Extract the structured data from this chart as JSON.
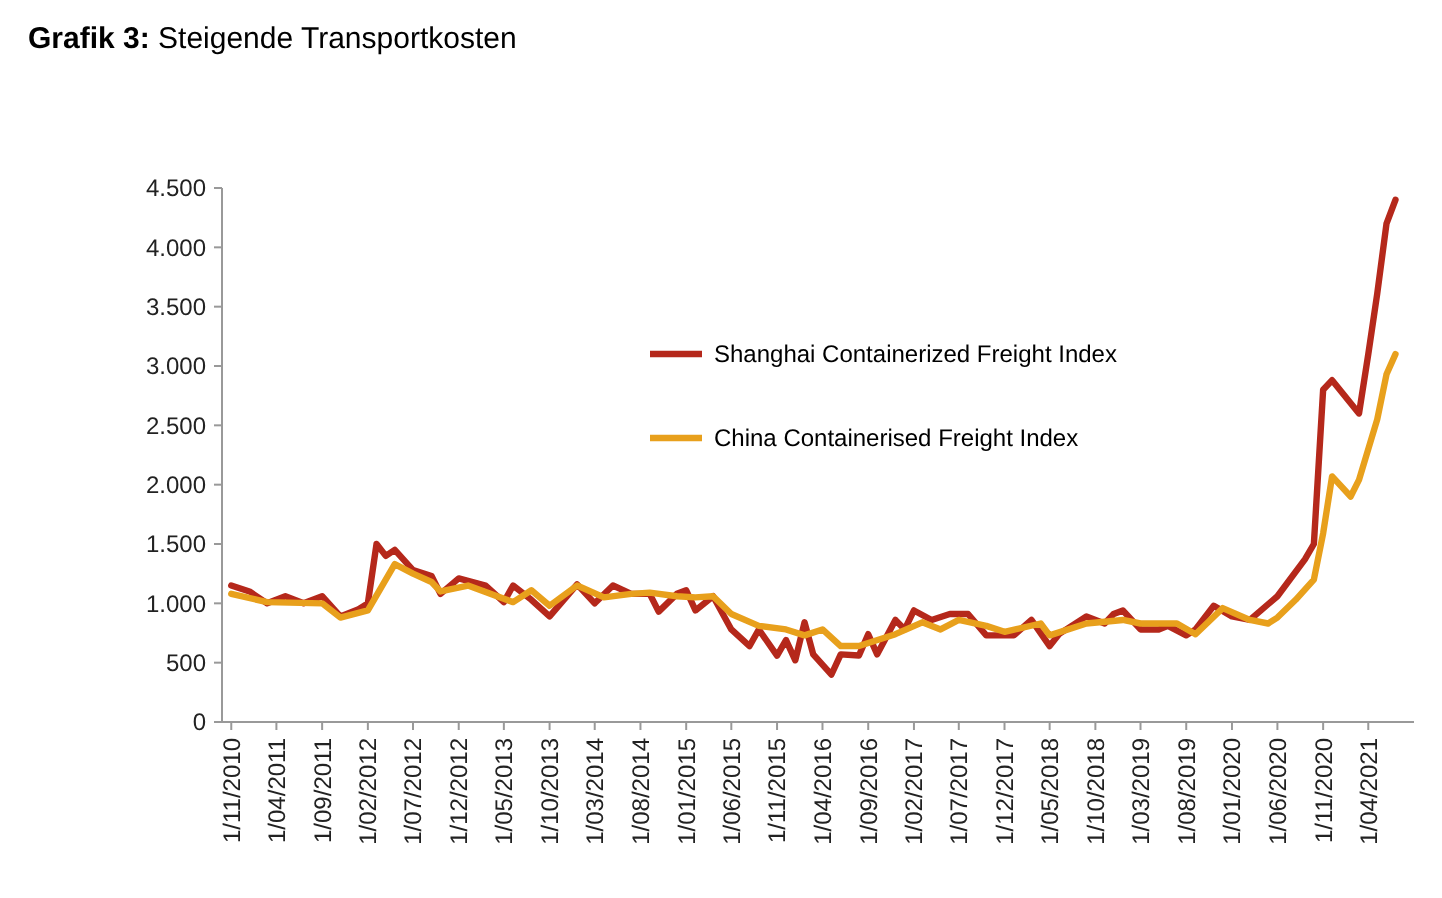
{
  "chart_data": {
    "type": "line",
    "title": "Grafik 3: Steigende Transportkosten",
    "xlim": [
      "2010-10",
      "2021-09"
    ],
    "xticks": [
      {
        "value": "2010-11",
        "label": "1/11/2010"
      },
      {
        "value": "2011-04",
        "label": "1/04/2011"
      },
      {
        "value": "2011-09",
        "label": "1/09/2011"
      },
      {
        "value": "2012-02",
        "label": "1/02/2012"
      },
      {
        "value": "2012-07",
        "label": "1/07/2012"
      },
      {
        "value": "2012-12",
        "label": "1/12/2012"
      },
      {
        "value": "2013-05",
        "label": "1/05/2013"
      },
      {
        "value": "2013-10",
        "label": "1/10/2013"
      },
      {
        "value": "2014-03",
        "label": "1/03/2014"
      },
      {
        "value": "2014-08",
        "label": "1/08/2014"
      },
      {
        "value": "2015-01",
        "label": "1/01/2015"
      },
      {
        "value": "2015-06",
        "label": "1/06/2015"
      },
      {
        "value": "2015-11",
        "label": "1/11/2015"
      },
      {
        "value": "2016-04",
        "label": "1/04/2016"
      },
      {
        "value": "2016-09",
        "label": "1/09/2016"
      },
      {
        "value": "2017-02",
        "label": "1/02/2017"
      },
      {
        "value": "2017-07",
        "label": "1/07/2017"
      },
      {
        "value": "2017-12",
        "label": "1/12/2017"
      },
      {
        "value": "2018-05",
        "label": "1/05/2018"
      },
      {
        "value": "2018-10",
        "label": "1/10/2018"
      },
      {
        "value": "2019-03",
        "label": "1/03/2019"
      },
      {
        "value": "2019-08",
        "label": "1/08/2019"
      },
      {
        "value": "2020-01",
        "label": "1/01/2020"
      },
      {
        "value": "2020-06",
        "label": "1/06/2020"
      },
      {
        "value": "2020-11",
        "label": "1/11/2020"
      },
      {
        "value": "2021-04",
        "label": "1/04/2021"
      }
    ],
    "ylim": [
      0,
      4500
    ],
    "yticks": [
      0,
      500,
      {
        "value": 1000,
        "label": "1.000"
      },
      {
        "value": 1500,
        "label": "1.500"
      },
      {
        "value": 2000,
        "label": "2.000"
      },
      {
        "value": 2500,
        "label": "2.500"
      },
      {
        "value": 3000,
        "label": "3.000"
      },
      {
        "value": 3500,
        "label": "3.500"
      },
      {
        "value": 4000,
        "label": "4.000"
      },
      {
        "value": 4500,
        "label": "4.500"
      }
    ],
    "grid": false,
    "legend": "top",
    "marker": "none",
    "line_style": "solid",
    "series": [
      {
        "name": "Shanghai Containerized Freight Index",
        "color": "#b5281b",
        "x": [
          "2010-11",
          "2011-01",
          "2011-03",
          "2011-05",
          "2011-07",
          "2011-09",
          "2011-11",
          "2012-01",
          "2012-02",
          "2012-03",
          "2012-04",
          "2012-05",
          "2012-07",
          "2012-09",
          "2012-10",
          "2012-12",
          "2013-03",
          "2013-05",
          "2013-06",
          "2013-08",
          "2013-10",
          "2014-01",
          "2014-03",
          "2014-05",
          "2014-07",
          "2014-09",
          "2014-10",
          "2014-12",
          "2015-01",
          "2015-02",
          "2015-04",
          "2015-06",
          "2015-08",
          "2015-09",
          "2015-11",
          "2015-12",
          "2016-01",
          "2016-02",
          "2016-03",
          "2016-05",
          "2016-06",
          "2016-08",
          "2016-09",
          "2016-10",
          "2016-12",
          "2017-01",
          "2017-02",
          "2017-04",
          "2017-06",
          "2017-08",
          "2017-10",
          "2018-01",
          "2018-03",
          "2018-05",
          "2018-06",
          "2018-09",
          "2018-11",
          "2018-12",
          "2019-01",
          "2019-03",
          "2019-05",
          "2019-06",
          "2019-08",
          "2019-09",
          "2019-11",
          "2020-01",
          "2020-03",
          "2020-06",
          "2020-09",
          "2020-10",
          "2020-11",
          "2020-12",
          "2021-03",
          "2021-04",
          "2021-05",
          "2021-06",
          "2021-07"
        ],
        "values": [
          1150,
          1100,
          1000,
          1060,
          1000,
          1060,
          890,
          950,
          1000,
          1500,
          1400,
          1450,
          1280,
          1230,
          1080,
          1210,
          1150,
          1010,
          1150,
          1030,
          890,
          1160,
          1000,
          1150,
          1080,
          1080,
          930,
          1080,
          1110,
          940,
          1060,
          780,
          640,
          780,
          560,
          690,
          520,
          840,
          570,
          400,
          570,
          560,
          740,
          570,
          860,
          780,
          940,
          860,
          910,
          910,
          730,
          730,
          860,
          640,
          740,
          890,
          830,
          910,
          940,
          780,
          780,
          810,
          730,
          780,
          980,
          890,
          860,
          1060,
          1370,
          1500,
          2800,
          2880,
          2600,
          3100,
          3610,
          4200,
          4400
        ]
      },
      {
        "name": "China Containerised Freight Index",
        "color": "#e8a01c",
        "x": [
          "2010-11",
          "2011-03",
          "2011-09",
          "2011-11",
          "2012-02",
          "2012-05",
          "2012-07",
          "2012-09",
          "2012-10",
          "2013-01",
          "2013-06",
          "2013-08",
          "2013-10",
          "2014-01",
          "2014-04",
          "2014-07",
          "2014-09",
          "2014-12",
          "2015-02",
          "2015-04",
          "2015-06",
          "2015-09",
          "2015-12",
          "2016-02",
          "2016-04",
          "2016-06",
          "2016-08",
          "2016-12",
          "2017-03",
          "2017-05",
          "2017-07",
          "2017-10",
          "2017-12",
          "2018-04",
          "2018-05",
          "2018-09",
          "2019-01",
          "2019-03",
          "2019-07",
          "2019-09",
          "2019-12",
          "2020-03",
          "2020-05",
          "2020-06",
          "2020-08",
          "2020-10",
          "2020-11",
          "2020-12",
          "2021-02",
          "2021-03",
          "2021-05",
          "2021-06",
          "2021-07"
        ],
        "values": [
          1080,
          1010,
          1000,
          880,
          940,
          1330,
          1250,
          1180,
          1100,
          1150,
          1010,
          1110,
          980,
          1150,
          1050,
          1080,
          1090,
          1060,
          1050,
          1060,
          910,
          810,
          780,
          730,
          780,
          640,
          640,
          740,
          840,
          780,
          860,
          810,
          760,
          830,
          730,
          830,
          860,
          830,
          830,
          740,
          960,
          860,
          830,
          880,
          1030,
          1200,
          1590,
          2070,
          1900,
          2040,
          2550,
          2930,
          3100
        ]
      }
    ]
  }
}
